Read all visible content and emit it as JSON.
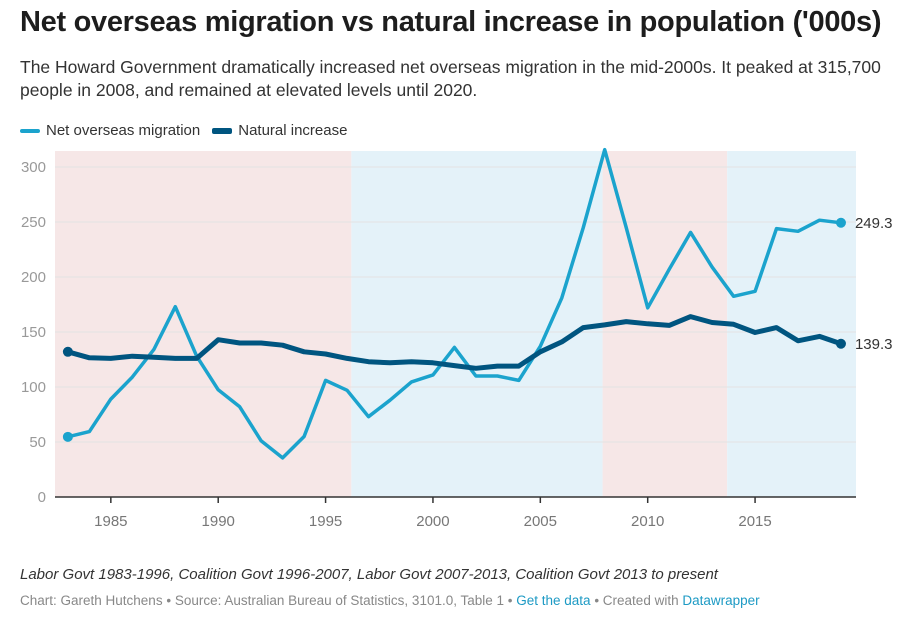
{
  "header": {
    "title": "Net overseas migration vs natural increase in population ('000s)",
    "subtitle": "The Howard Government dramatically increased net overseas migration in the mid-2000s. It peaked at 315,700 people in 2008, and remained at elevated levels until 2020."
  },
  "legend": {
    "items": [
      {
        "label": "Net overseas migration",
        "color": "#1ba3cd"
      },
      {
        "label": "Natural increase",
        "color": "#005580"
      }
    ]
  },
  "notes": "Labor Govt 1983-1996, Coalition Govt 1996-2007, Labor Govt 2007-2013, Coalition Govt 2013 to present",
  "footer": {
    "chart_by": "Chart: Gareth Hutchens",
    "separator": " • ",
    "source": "Source: Australian Bureau of Statistics, 3101.0, Table 1",
    "get_data_label": "Get the data",
    "created_with_prefix": "Created with ",
    "datawrapper_label": "Datawrapper"
  },
  "chart_data": {
    "type": "line",
    "title": "Net overseas migration vs natural increase in population ('000s)",
    "xlabel": "",
    "ylabel": "",
    "x": [
      1983,
      1984,
      1985,
      1986,
      1987,
      1988,
      1989,
      1990,
      1991,
      1992,
      1993,
      1994,
      1995,
      1996,
      1997,
      1998,
      1999,
      2000,
      2001,
      2002,
      2003,
      2004,
      2005,
      2006,
      2007,
      2008,
      2009,
      2010,
      2011,
      2012,
      2013,
      2014,
      2015,
      2016,
      2017,
      2018,
      2019
    ],
    "series": [
      {
        "name": "Net overseas migration",
        "color": "#1ba3cd",
        "values": [
          54.7,
          59.5,
          89,
          109,
          134,
          173,
          128,
          97.5,
          82,
          51,
          35.5,
          55,
          106,
          97,
          73,
          88,
          104.6,
          111,
          136,
          110,
          110,
          106,
          137,
          181,
          245,
          315.7,
          245,
          172,
          207,
          240.5,
          209,
          182.5,
          187,
          244,
          241.5,
          251.6,
          249.3
        ],
        "end_label": "249.3"
      },
      {
        "name": "Natural increase",
        "color": "#005580",
        "values": [
          132,
          126.5,
          126,
          128,
          127,
          126,
          126,
          143,
          140,
          140,
          138,
          132,
          130,
          126,
          123,
          122,
          123,
          122,
          119.5,
          117,
          119,
          119,
          132,
          141,
          154,
          156.5,
          159.5,
          157.5,
          156,
          164,
          158.6,
          157,
          149.5,
          154,
          142,
          146,
          139.3
        ],
        "end_label": "139.3"
      }
    ],
    "y_ticks": [
      0,
      50,
      100,
      150,
      200,
      250,
      300
    ],
    "x_ticks": [
      1985,
      1990,
      1995,
      2000,
      2005,
      2010,
      2015
    ],
    "xlim": [
      1982.4,
      2019.7
    ],
    "ylim": [
      0,
      300
    ],
    "grid": true,
    "legend_position": "top-left",
    "shaded_periods": [
      {
        "label": "Labor Govt",
        "start": 1982.4,
        "end": 1996.2,
        "color": "#f6e7e7"
      },
      {
        "label": "Coalition Govt",
        "start": 1996.2,
        "end": 2007.9,
        "color": "#e4f2f9"
      },
      {
        "label": "Labor Govt",
        "start": 2007.9,
        "end": 2013.7,
        "color": "#f6e7e7"
      },
      {
        "label": "Coalition Govt",
        "start": 2013.7,
        "end": 2019.7,
        "color": "#e4f2f9"
      }
    ]
  }
}
